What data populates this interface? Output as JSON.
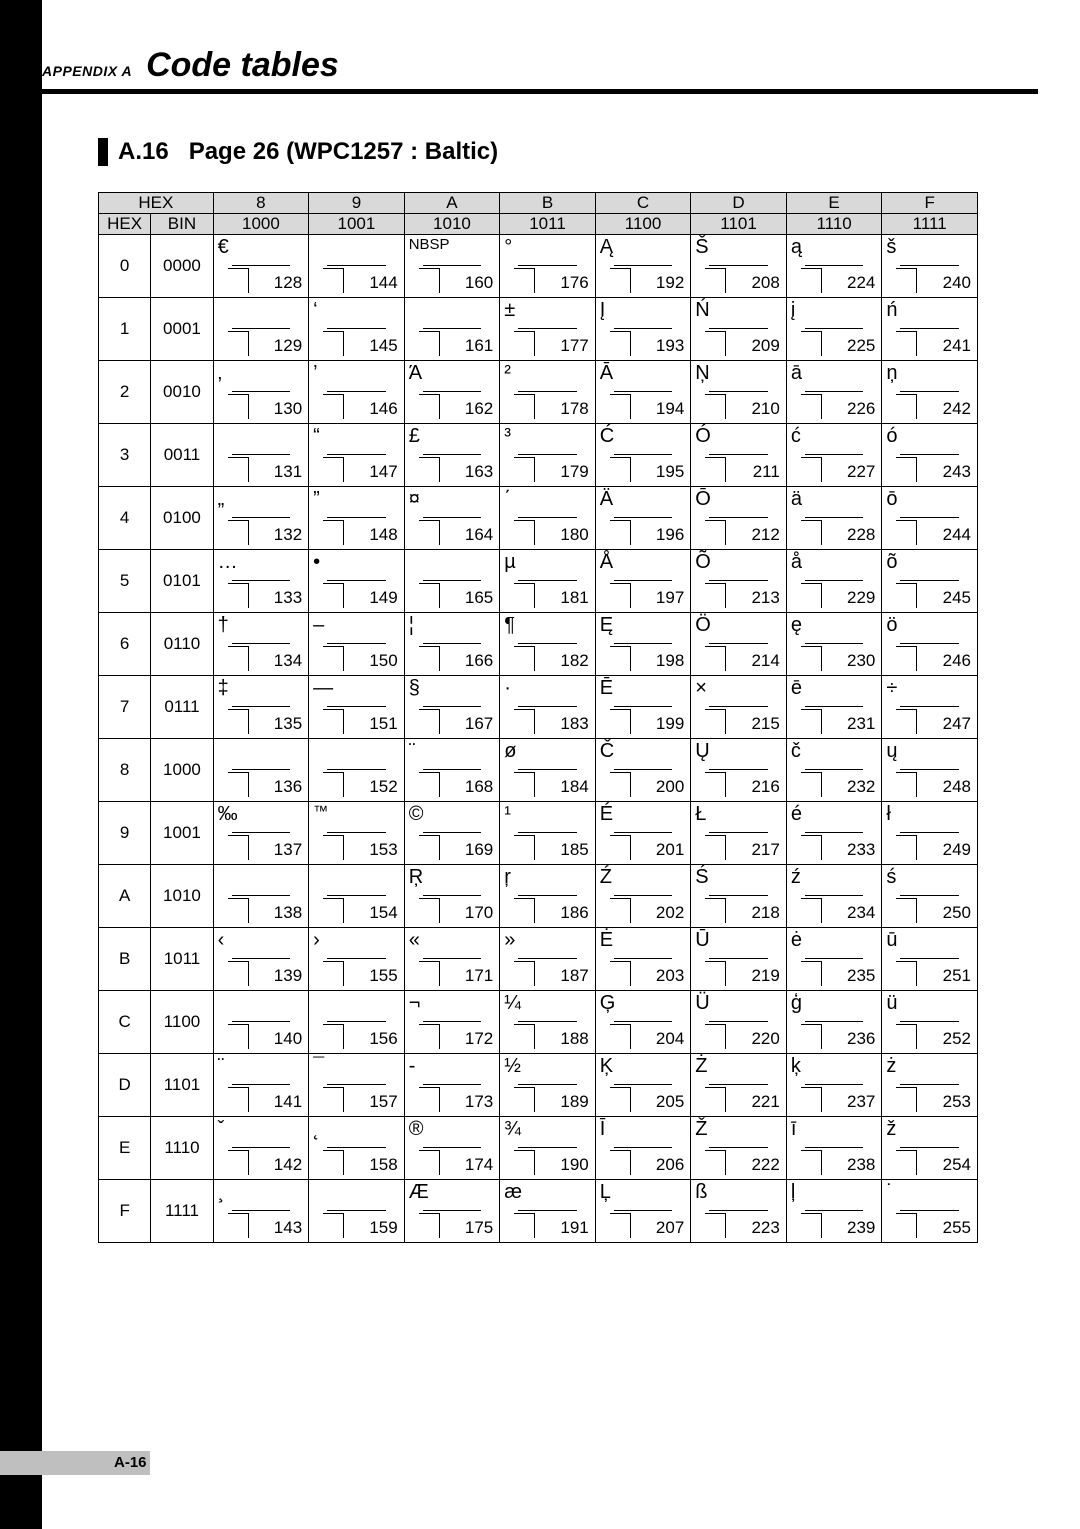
{
  "appendix_label": "APPENDIX A",
  "chapter_title": "Code tables",
  "section_number": "A.16",
  "section_title": "Page 26 (WPC1257 : Baltic)",
  "page_number": "A-16",
  "header_top": {
    "corner": "HEX",
    "cols": [
      "8",
      "9",
      "A",
      "B",
      "C",
      "D",
      "E",
      "F"
    ]
  },
  "header_bin": {
    "left": [
      "HEX",
      "BIN"
    ],
    "cols": [
      "1000",
      "1001",
      "1010",
      "1011",
      "1100",
      "1101",
      "1110",
      "1111"
    ]
  },
  "row_labels": [
    {
      "hex": "0",
      "bin": "0000"
    },
    {
      "hex": "1",
      "bin": "0001"
    },
    {
      "hex": "2",
      "bin": "0010"
    },
    {
      "hex": "3",
      "bin": "0011"
    },
    {
      "hex": "4",
      "bin": "0100"
    },
    {
      "hex": "5",
      "bin": "0101"
    },
    {
      "hex": "6",
      "bin": "0110"
    },
    {
      "hex": "7",
      "bin": "0111"
    },
    {
      "hex": "8",
      "bin": "1000"
    },
    {
      "hex": "9",
      "bin": "1001"
    },
    {
      "hex": "A",
      "bin": "1010"
    },
    {
      "hex": "B",
      "bin": "1011"
    },
    {
      "hex": "C",
      "bin": "1100"
    },
    {
      "hex": "D",
      "bin": "1101"
    },
    {
      "hex": "E",
      "bin": "1110"
    },
    {
      "hex": "F",
      "bin": "1111"
    }
  ],
  "cells": [
    [
      {
        "g": "€",
        "d": "128"
      },
      {
        "g": "",
        "d": "144"
      },
      {
        "g": "NBSP",
        "d": "160",
        "small": true
      },
      {
        "g": "°",
        "d": "176"
      },
      {
        "g": "Ą",
        "d": "192"
      },
      {
        "g": "Š",
        "d": "208"
      },
      {
        "g": "ą",
        "d": "224"
      },
      {
        "g": "š",
        "d": "240"
      }
    ],
    [
      {
        "g": "",
        "d": "129"
      },
      {
        "g": "‘",
        "d": "145"
      },
      {
        "g": "",
        "d": "161"
      },
      {
        "g": "±",
        "d": "177"
      },
      {
        "g": "Į",
        "d": "193"
      },
      {
        "g": "Ń",
        "d": "209"
      },
      {
        "g": "į",
        "d": "225"
      },
      {
        "g": "ń",
        "d": "241"
      }
    ],
    [
      {
        "g": "‚",
        "d": "130"
      },
      {
        "g": "’",
        "d": "146"
      },
      {
        "g": "Ά",
        "d": "162"
      },
      {
        "g": "²",
        "d": "178"
      },
      {
        "g": "Ā",
        "d": "194"
      },
      {
        "g": "Ņ",
        "d": "210"
      },
      {
        "g": "ā",
        "d": "226"
      },
      {
        "g": "ņ",
        "d": "242"
      }
    ],
    [
      {
        "g": "",
        "d": "131"
      },
      {
        "g": "“",
        "d": "147"
      },
      {
        "g": "£",
        "d": "163"
      },
      {
        "g": "³",
        "d": "179"
      },
      {
        "g": "Ć",
        "d": "195"
      },
      {
        "g": "Ó",
        "d": "211"
      },
      {
        "g": "ć",
        "d": "227"
      },
      {
        "g": "ó",
        "d": "243"
      }
    ],
    [
      {
        "g": "„",
        "d": "132"
      },
      {
        "g": "”",
        "d": "148"
      },
      {
        "g": "¤",
        "d": "164"
      },
      {
        "g": "΄",
        "d": "180"
      },
      {
        "g": "Ä",
        "d": "196"
      },
      {
        "g": "Ō",
        "d": "212"
      },
      {
        "g": "ä",
        "d": "228"
      },
      {
        "g": "ō",
        "d": "244"
      }
    ],
    [
      {
        "g": "…",
        "d": "133"
      },
      {
        "g": "•",
        "d": "149"
      },
      {
        "g": "",
        "d": "165"
      },
      {
        "g": "µ",
        "d": "181"
      },
      {
        "g": "Å",
        "d": "197"
      },
      {
        "g": "Õ",
        "d": "213"
      },
      {
        "g": "å",
        "d": "229"
      },
      {
        "g": "õ",
        "d": "245"
      }
    ],
    [
      {
        "g": "†",
        "d": "134"
      },
      {
        "g": "–",
        "d": "150"
      },
      {
        "g": "¦",
        "d": "166"
      },
      {
        "g": "¶",
        "d": "182"
      },
      {
        "g": "Ę",
        "d": "198"
      },
      {
        "g": "Ö",
        "d": "214"
      },
      {
        "g": "ę",
        "d": "230"
      },
      {
        "g": "ö",
        "d": "246"
      }
    ],
    [
      {
        "g": "‡",
        "d": "135"
      },
      {
        "g": "—",
        "d": "151"
      },
      {
        "g": "§",
        "d": "167"
      },
      {
        "g": "·",
        "d": "183"
      },
      {
        "g": "Ē",
        "d": "199"
      },
      {
        "g": "×",
        "d": "215"
      },
      {
        "g": "ē",
        "d": "231"
      },
      {
        "g": "÷",
        "d": "247"
      }
    ],
    [
      {
        "g": "",
        "d": "136"
      },
      {
        "g": "",
        "d": "152"
      },
      {
        "g": "¨",
        "d": "168"
      },
      {
        "g": "ø",
        "d": "184"
      },
      {
        "g": "Č",
        "d": "200"
      },
      {
        "g": "Ų",
        "d": "216"
      },
      {
        "g": "č",
        "d": "232"
      },
      {
        "g": "ų",
        "d": "248"
      }
    ],
    [
      {
        "g": "‰",
        "d": "137"
      },
      {
        "g": "™",
        "d": "153",
        "small": true
      },
      {
        "g": "©",
        "d": "169"
      },
      {
        "g": "¹",
        "d": "185"
      },
      {
        "g": "É",
        "d": "201"
      },
      {
        "g": "Ł",
        "d": "217"
      },
      {
        "g": "é",
        "d": "233"
      },
      {
        "g": "ł",
        "d": "249"
      }
    ],
    [
      {
        "g": "",
        "d": "138"
      },
      {
        "g": "",
        "d": "154"
      },
      {
        "g": "Ŗ",
        "d": "170"
      },
      {
        "g": "ŗ",
        "d": "186"
      },
      {
        "g": "Ź",
        "d": "202"
      },
      {
        "g": "Ś",
        "d": "218"
      },
      {
        "g": "ź",
        "d": "234"
      },
      {
        "g": "ś",
        "d": "250"
      }
    ],
    [
      {
        "g": "‹",
        "d": "139"
      },
      {
        "g": "›",
        "d": "155"
      },
      {
        "g": "«",
        "d": "171"
      },
      {
        "g": "»",
        "d": "187"
      },
      {
        "g": "Ė",
        "d": "203"
      },
      {
        "g": "Ū",
        "d": "219"
      },
      {
        "g": "ė",
        "d": "235"
      },
      {
        "g": "ū",
        "d": "251"
      }
    ],
    [
      {
        "g": "",
        "d": "140"
      },
      {
        "g": "",
        "d": "156"
      },
      {
        "g": "¬",
        "d": "172"
      },
      {
        "g": "¼",
        "d": "188"
      },
      {
        "g": "Ģ",
        "d": "204"
      },
      {
        "g": "Ü",
        "d": "220"
      },
      {
        "g": "ģ",
        "d": "236"
      },
      {
        "g": "ü",
        "d": "252"
      }
    ],
    [
      {
        "g": "¨",
        "d": "141"
      },
      {
        "g": "¯",
        "d": "157"
      },
      {
        "g": "-",
        "d": "173"
      },
      {
        "g": "½",
        "d": "189"
      },
      {
        "g": "Ķ",
        "d": "205"
      },
      {
        "g": "Ż",
        "d": "221"
      },
      {
        "g": "ķ",
        "d": "237"
      },
      {
        "g": "ż",
        "d": "253"
      }
    ],
    [
      {
        "g": "ˇ",
        "d": "142"
      },
      {
        "g": "˛",
        "d": "158"
      },
      {
        "g": "®",
        "d": "174"
      },
      {
        "g": "¾",
        "d": "190"
      },
      {
        "g": "Ī",
        "d": "206"
      },
      {
        "g": "Ž",
        "d": "222"
      },
      {
        "g": "ī",
        "d": "238"
      },
      {
        "g": "ž",
        "d": "254"
      }
    ],
    [
      {
        "g": "¸",
        "d": "143"
      },
      {
        "g": "",
        "d": "159"
      },
      {
        "g": "Æ",
        "d": "175"
      },
      {
        "g": "æ",
        "d": "191"
      },
      {
        "g": "Ļ",
        "d": "207"
      },
      {
        "g": "ß",
        "d": "223"
      },
      {
        "g": "ļ",
        "d": "239"
      },
      {
        "g": "˙",
        "d": "255"
      }
    ]
  ],
  "colors": {
    "page_bg": "#ffffff",
    "text": "#000000",
    "header_bg": "#d9d9d9",
    "footer_band": "#bfbfbf"
  },
  "typography": {
    "body_family": "Arial, Helvetica, sans-serif",
    "chapter_size_pt": 26,
    "section_size_pt": 18,
    "cell_size_pt": 13
  }
}
